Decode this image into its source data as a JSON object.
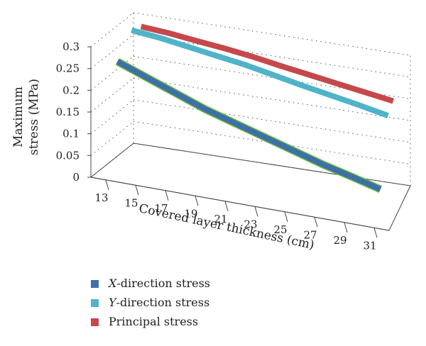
{
  "chart_data": {
    "type": "line",
    "title": "",
    "xlabel": "Covered layer thickness (cm)",
    "ylabel_lines": [
      "Maximum",
      "stress (MPa)"
    ],
    "categories": [
      "13",
      "15",
      "17",
      "19",
      "21",
      "23",
      "25",
      "27",
      "29",
      "31"
    ],
    "y_ticks": [
      "0",
      "0.05",
      "0.1",
      "0.15",
      "0.2",
      "0.25",
      "0.3"
    ],
    "ylim": [
      0,
      0.3
    ],
    "grid": true,
    "legend_position": "bottom-left",
    "series": [
      {
        "name_prefix": "X",
        "name_suffix": "-direction stress",
        "color": "#3f6fa8",
        "edge_color": "#6bbf3f",
        "values": [
          0.25,
          0.225,
          0.2,
          0.175,
          0.155,
          0.135,
          0.115,
          0.095,
          0.078,
          0.06
        ]
      },
      {
        "name_prefix": "Y",
        "name_suffix": "-direction stress",
        "color": "#4fb3c9",
        "values": [
          0.295,
          0.288,
          0.278,
          0.268,
          0.258,
          0.245,
          0.232,
          0.22,
          0.208,
          0.195
        ]
      },
      {
        "name": "Principal stress",
        "color": "#c5484b",
        "values": [
          0.285,
          0.28,
          0.272,
          0.265,
          0.256,
          0.245,
          0.235,
          0.225,
          0.215,
          0.205
        ]
      }
    ]
  }
}
